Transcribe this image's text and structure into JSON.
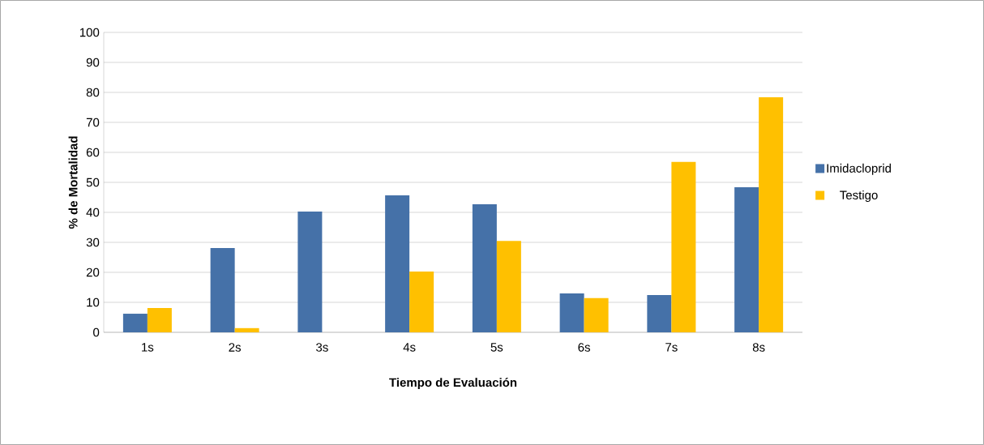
{
  "chart_data": {
    "type": "bar",
    "xlabel": "Tiempo  de Evaluación",
    "ylabel": "%  de  Mortalidad",
    "categories": [
      "1s",
      "2s",
      "3s",
      "4s",
      "5s",
      "6s",
      "7s",
      "8s"
    ],
    "series": [
      {
        "name": "Imidacloprid",
        "color": "#4571a8",
        "values": [
          6.2,
          28.1,
          40.3,
          45.7,
          42.7,
          13.0,
          12.4,
          48.4
        ]
      },
      {
        "name": "Testigo",
        "color": "#ffc000",
        "values": [
          8.1,
          1.4,
          0,
          20.3,
          30.5,
          11.4,
          56.8,
          78.4
        ]
      }
    ],
    "ylim": [
      0,
      100
    ],
    "yticks": [
      0,
      10,
      20,
      30,
      40,
      50,
      60,
      70,
      80,
      90,
      100
    ],
    "grid": "y",
    "legend": "right"
  }
}
